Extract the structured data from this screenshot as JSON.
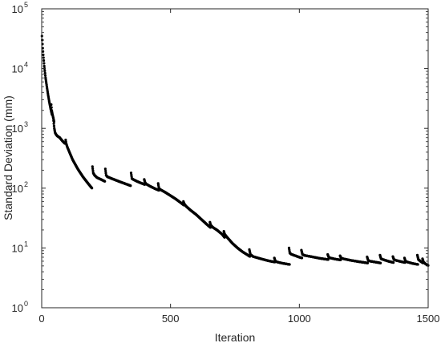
{
  "chart_data": {
    "type": "scatter",
    "title": "",
    "xlabel": "Iteration",
    "ylabel": "Standard Deviation (mm)",
    "xlim": [
      0,
      1500
    ],
    "ylim": [
      1,
      100000
    ],
    "yscale": "log",
    "grid": false,
    "legend": "none",
    "box": true,
    "x_ticks": [
      {
        "value": 0,
        "label": "0"
      },
      {
        "value": 500,
        "label": "500"
      },
      {
        "value": 1000,
        "label": "1000"
      },
      {
        "value": 1500,
        "label": "1500"
      }
    ],
    "y_ticks": [
      {
        "value": 1,
        "base": "10",
        "exp": "0"
      },
      {
        "value": 10,
        "base": "10",
        "exp": "1"
      },
      {
        "value": 100,
        "base": "10",
        "exp": "2"
      },
      {
        "value": 1000,
        "base": "10",
        "exp": "3"
      },
      {
        "value": 10000,
        "base": "10",
        "exp": "4"
      },
      {
        "value": 100000,
        "base": "10",
        "exp": "5"
      }
    ],
    "marker_color": "#000000",
    "segments": [
      {
        "x": [
          1,
          2,
          4,
          6,
          10,
          15,
          20,
          25,
          30,
          35,
          40
        ],
        "y": [
          35000,
          30000,
          22000,
          17000,
          11000,
          7000,
          5000,
          3600,
          2700,
          2100,
          1700
        ]
      },
      {
        "x": [
          37,
          39,
          42,
          45,
          48
        ],
        "y": [
          2500,
          2000,
          1700,
          1500,
          1300
        ]
      },
      {
        "x": [
          45,
          47,
          49,
          52,
          55,
          60,
          70,
          80,
          90
        ],
        "y": [
          1500,
          1200,
          1000,
          850,
          800,
          750,
          700,
          620,
          560
        ]
      },
      {
        "x": [
          93,
          95,
          100,
          120,
          140,
          160,
          180,
          195
        ],
        "y": [
          640,
          560,
          480,
          300,
          210,
          155,
          120,
          100
        ]
      },
      {
        "x": [
          197,
          200,
          205,
          215,
          230,
          245
        ],
        "y": [
          230,
          180,
          165,
          150,
          140,
          130
        ]
      },
      {
        "x": [
          247,
          250,
          255,
          280,
          310,
          345
        ],
        "y": [
          210,
          165,
          155,
          140,
          125,
          110
        ]
      },
      {
        "x": [
          347,
          350,
          355,
          370,
          385,
          400
        ],
        "y": [
          180,
          145,
          140,
          130,
          122,
          115
        ]
      },
      {
        "x": [
          398,
          401,
          405,
          420,
          440,
          455
        ],
        "y": [
          140,
          125,
          118,
          108,
          98,
          92
        ]
      },
      {
        "x": [
          452,
          455,
          460,
          480,
          500,
          520,
          540,
          552
        ],
        "y": [
          120,
          100,
          95,
          85,
          75,
          66,
          57,
          52
        ]
      },
      {
        "x": [
          550,
          553,
          560,
          580,
          600,
          620,
          640,
          655
        ],
        "y": [
          60,
          55,
          50,
          42,
          36,
          30,
          25,
          22
        ]
      },
      {
        "x": [
          653,
          656,
          665,
          680,
          700,
          710
        ],
        "y": [
          27,
          24,
          22,
          20,
          17,
          15
        ]
      },
      {
        "x": [
          707,
          710,
          720,
          740,
          760,
          780,
          800,
          808
        ],
        "y": [
          19,
          17,
          15,
          12,
          10,
          8.6,
          7.6,
          7.2
        ]
      },
      {
        "x": [
          806,
          810,
          820,
          850,
          880,
          905
        ],
        "y": [
          9.4,
          7.8,
          7.2,
          6.6,
          6.1,
          5.8
        ]
      },
      {
        "x": [
          903,
          907,
          915,
          930,
          950,
          962
        ],
        "y": [
          6.8,
          6.0,
          5.8,
          5.6,
          5.4,
          5.3
        ]
      },
      {
        "x": [
          960,
          963,
          970,
          985,
          1000,
          1010
        ],
        "y": [
          10,
          8.2,
          7.8,
          7.4,
          7.0,
          6.8
        ]
      },
      {
        "x": [
          1008,
          1012,
          1020,
          1050,
          1080,
          1112
        ],
        "y": [
          9.2,
          7.8,
          7.5,
          7.1,
          6.7,
          6.4
        ]
      },
      {
        "x": [
          1110,
          1114,
          1120,
          1140,
          1160
        ],
        "y": [
          7.8,
          7.0,
          6.8,
          6.5,
          6.3
        ]
      },
      {
        "x": [
          1158,
          1162,
          1170,
          1200,
          1230,
          1265
        ],
        "y": [
          7.4,
          6.8,
          6.6,
          6.2,
          5.9,
          5.6
        ]
      },
      {
        "x": [
          1263,
          1267,
          1275,
          1295,
          1315
        ],
        "y": [
          7.1,
          6.2,
          6.0,
          5.8,
          5.6
        ]
      },
      {
        "x": [
          1313,
          1317,
          1325,
          1345,
          1365
        ],
        "y": [
          7.6,
          6.6,
          6.4,
          6.0,
          5.7
        ]
      },
      {
        "x": [
          1363,
          1367,
          1375,
          1395,
          1410
        ],
        "y": [
          7.2,
          6.4,
          6.2,
          5.9,
          5.7
        ]
      },
      {
        "x": [
          1408,
          1412,
          1420,
          1440,
          1460
        ],
        "y": [
          6.8,
          6.0,
          5.8,
          5.5,
          5.3
        ]
      },
      {
        "x": [
          1458,
          1462,
          1470,
          1480
        ],
        "y": [
          7.6,
          6.4,
          6.0,
          5.6
        ]
      },
      {
        "x": [
          1478,
          1482,
          1490,
          1500
        ],
        "y": [
          6.6,
          5.8,
          5.4,
          5.1
        ]
      }
    ]
  }
}
